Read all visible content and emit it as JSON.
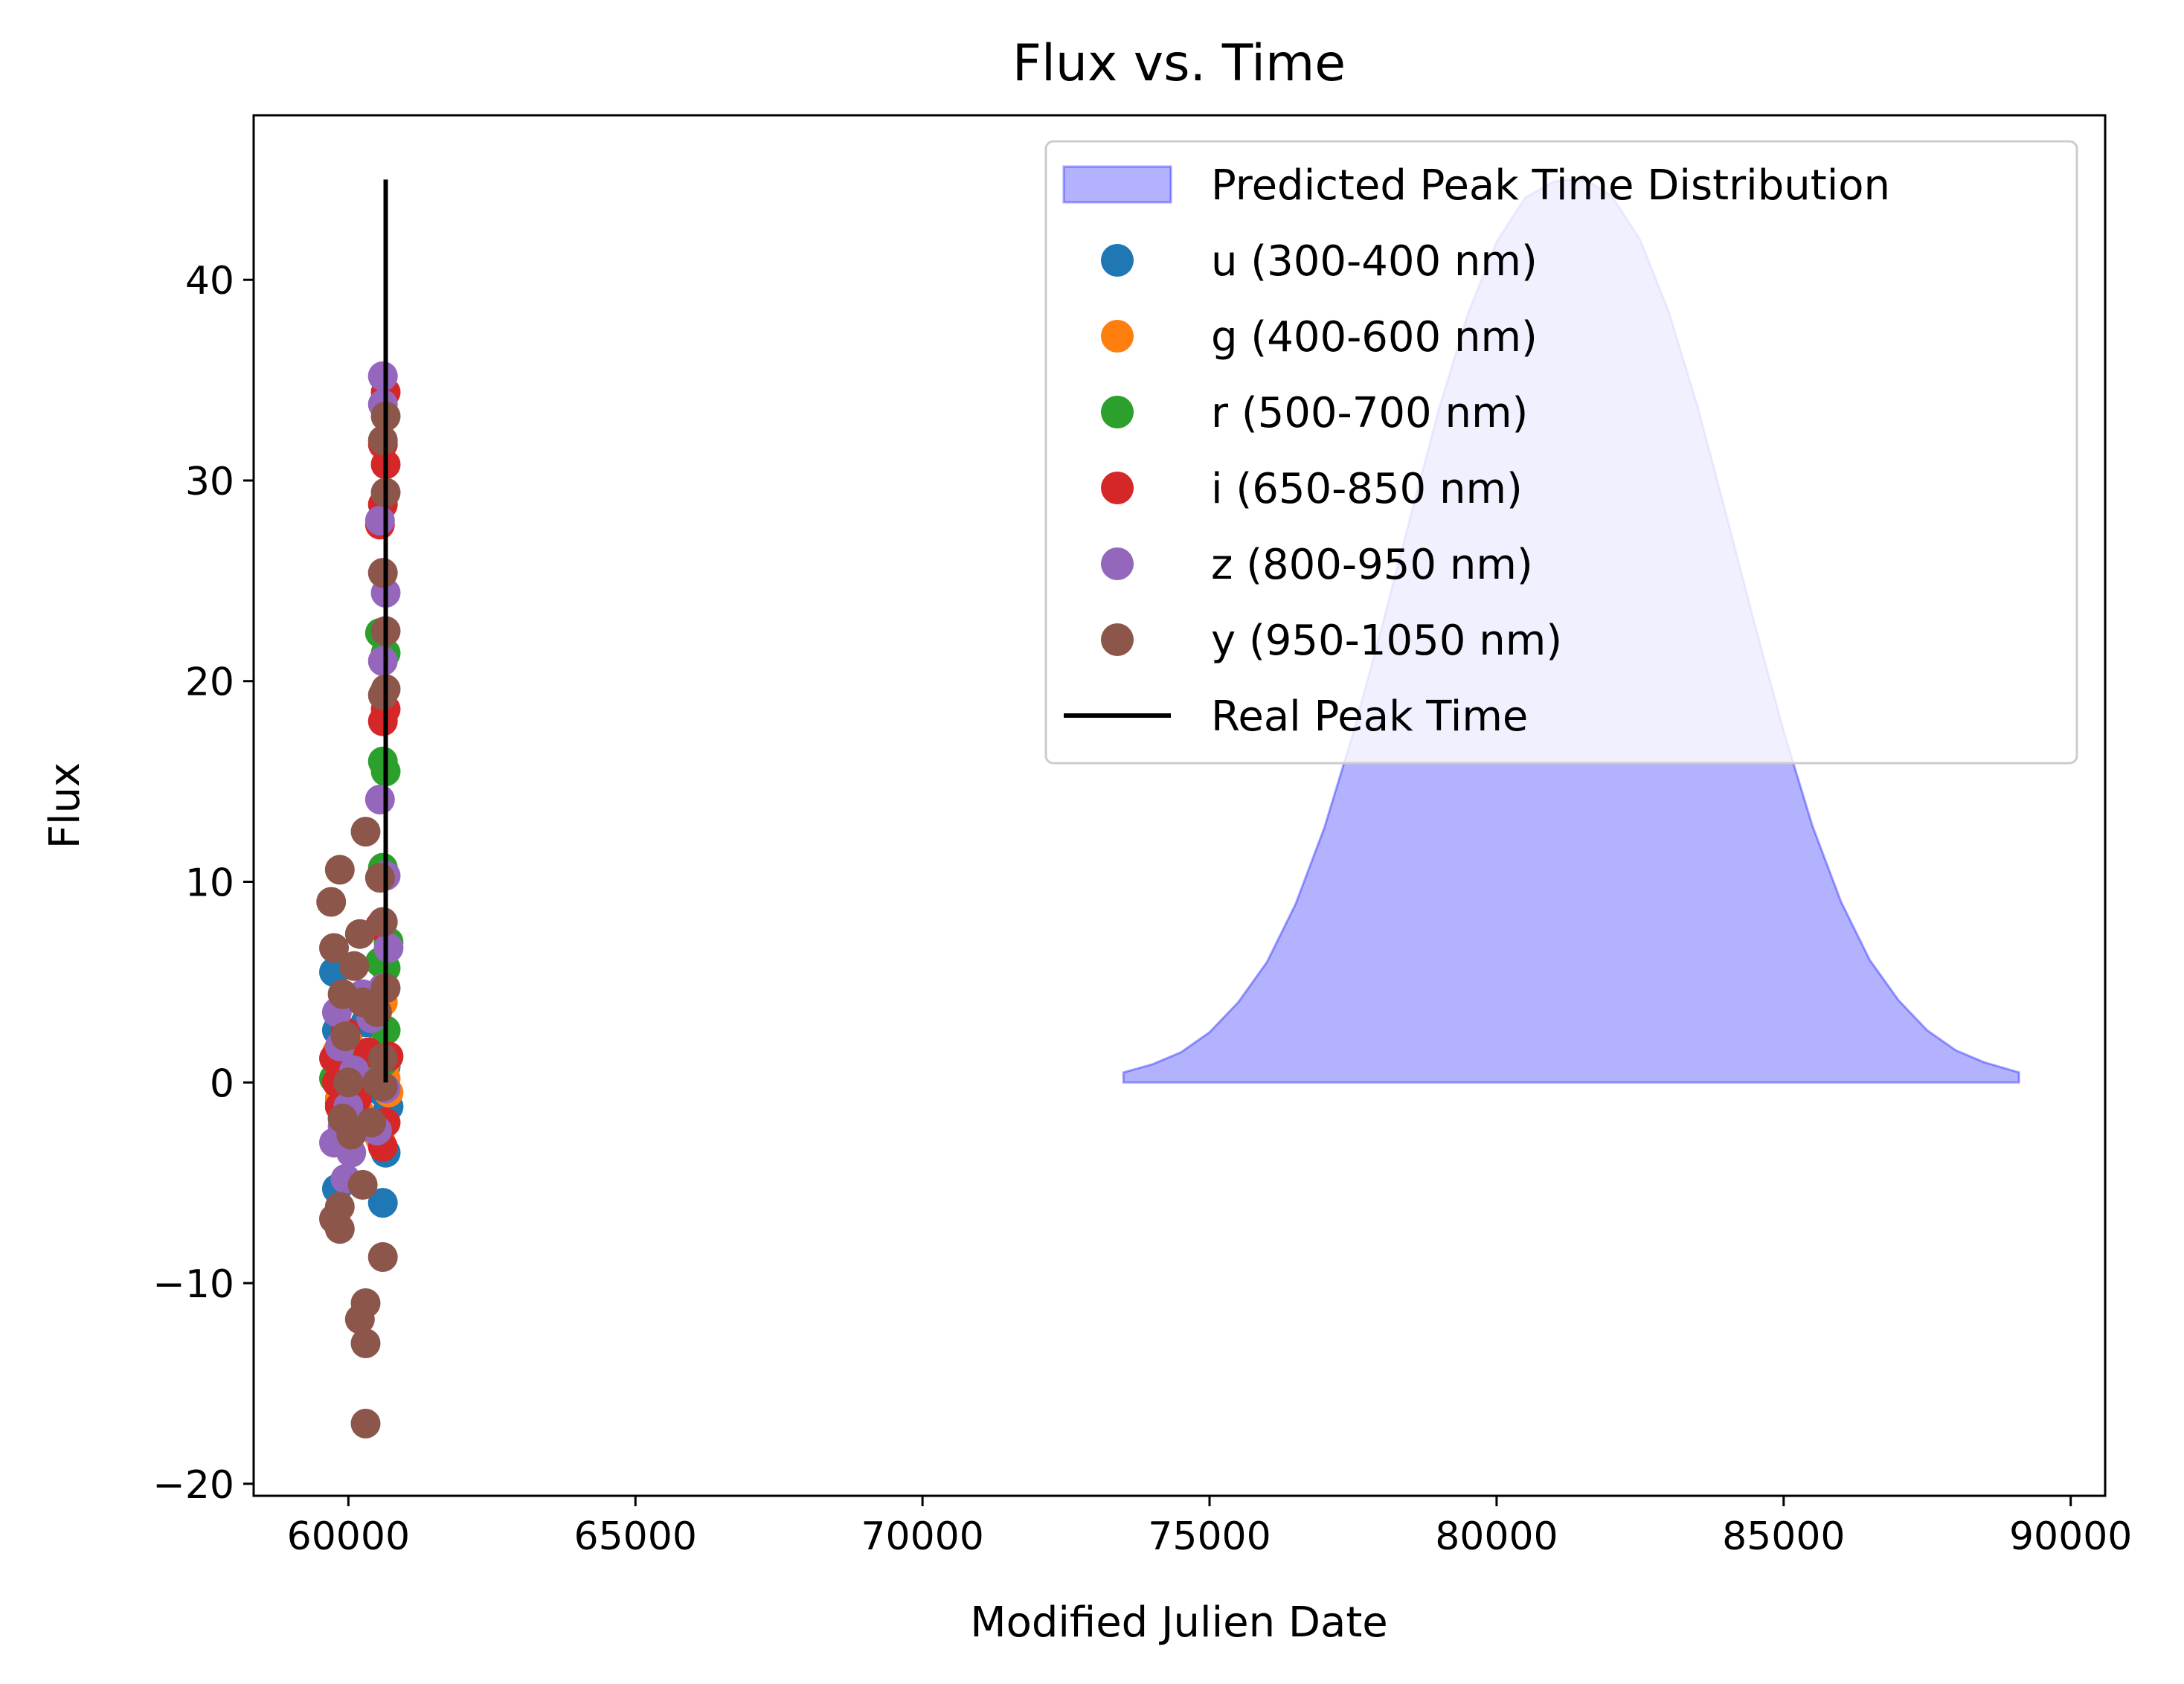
{
  "chart_data": {
    "type": "scatter",
    "title": "Flux vs. Time",
    "xlabel": "Modified Julien Date",
    "ylabel": "Flux",
    "xlim": [
      58350,
      90600
    ],
    "ylim": [
      -20.6,
      48.2
    ],
    "xticks": [
      60000,
      65000,
      70000,
      75000,
      80000,
      85000,
      90000
    ],
    "yticks": [
      -20,
      -10,
      0,
      10,
      20,
      30,
      40
    ],
    "xtick_labels": [
      "60000",
      "65000",
      "70000",
      "75000",
      "80000",
      "85000",
      "90000"
    ],
    "ytick_labels": [
      "−20",
      "−10",
      "0",
      "10",
      "20",
      "30",
      "40"
    ],
    "grid": false,
    "legend_position": "top-right",
    "series": [
      {
        "name": "u (300-400 nm)",
        "kind": "scatter",
        "color": "#1f77b4",
        "points": [
          [
            59750,
            5.5
          ],
          [
            59800,
            2.6
          ],
          [
            59850,
            -1.0
          ],
          [
            59800,
            -5.3
          ],
          [
            59900,
            1.8
          ],
          [
            60050,
            -0.6
          ],
          [
            60300,
            3.0
          ],
          [
            60400,
            1.2
          ],
          [
            60550,
            -0.4
          ],
          [
            60600,
            -6.0
          ],
          [
            60650,
            -3.5
          ],
          [
            60700,
            -1.2
          ],
          [
            60650,
            0.8
          ],
          [
            60600,
            2.5
          ],
          [
            60450,
            -2.0
          ]
        ]
      },
      {
        "name": "g (400-600 nm)",
        "kind": "scatter",
        "color": "#ff7f0e",
        "points": [
          [
            59800,
            1.5
          ],
          [
            59850,
            -0.8
          ],
          [
            59900,
            0.5
          ],
          [
            60000,
            2.0
          ],
          [
            60200,
            -1.5
          ],
          [
            60400,
            0.3
          ],
          [
            60600,
            4.0
          ],
          [
            60650,
            0.2
          ],
          [
            60700,
            -0.5
          ],
          [
            60650,
            1.0
          ],
          [
            60550,
            -2.8
          ],
          [
            60500,
            1.6
          ]
        ]
      },
      {
        "name": "r (500-700 nm)",
        "kind": "scatter",
        "color": "#2ca02c",
        "points": [
          [
            59750,
            0.2
          ],
          [
            59850,
            1.2
          ],
          [
            59900,
            -1.8
          ],
          [
            60100,
            -0.5
          ],
          [
            60300,
            0.8
          ],
          [
            60550,
            6.0
          ],
          [
            60600,
            10.7
          ],
          [
            60650,
            15.5
          ],
          [
            60600,
            16.0
          ],
          [
            60650,
            21.4
          ],
          [
            60550,
            22.4
          ],
          [
            60650,
            2.6
          ],
          [
            60700,
            7.0
          ],
          [
            60650,
            5.7
          ],
          [
            60600,
            1.0
          ]
        ]
      },
      {
        "name": "i (650-850 nm)",
        "kind": "scatter",
        "color": "#d62728",
        "points": [
          [
            59750,
            1.2
          ],
          [
            59800,
            0.0
          ],
          [
            59850,
            -1.2
          ],
          [
            59950,
            2.5
          ],
          [
            60150,
            -0.8
          ],
          [
            60350,
            1.5
          ],
          [
            60550,
            7.8
          ],
          [
            60600,
            18.0
          ],
          [
            60650,
            18.6
          ],
          [
            60550,
            27.8
          ],
          [
            60600,
            28.8
          ],
          [
            60650,
            30.8
          ],
          [
            60600,
            31.8
          ],
          [
            60650,
            34.4
          ],
          [
            60600,
            -3.2
          ],
          [
            60650,
            -2.0
          ],
          [
            60700,
            1.3
          ]
        ]
      },
      {
        "name": "z (800-950 nm)",
        "kind": "scatter",
        "color": "#9467bd",
        "points": [
          [
            59750,
            -3.0
          ],
          [
            59800,
            3.5
          ],
          [
            59850,
            1.8
          ],
          [
            59900,
            -2.2
          ],
          [
            59950,
            -4.8
          ],
          [
            60000,
            -1.2
          ],
          [
            60050,
            -3.5
          ],
          [
            60100,
            0.6
          ],
          [
            60250,
            4.4
          ],
          [
            60300,
            -2.2
          ],
          [
            60400,
            3.2
          ],
          [
            60550,
            14.1
          ],
          [
            60600,
            21.0
          ],
          [
            60650,
            24.4
          ],
          [
            60550,
            28.0
          ],
          [
            60600,
            33.8
          ],
          [
            60600,
            35.2
          ],
          [
            60650,
            10.3
          ],
          [
            60700,
            6.7
          ],
          [
            60600,
            4.7
          ],
          [
            60650,
            -0.3
          ],
          [
            60500,
            -2.4
          ]
        ]
      },
      {
        "name": "y (950-1050 nm)",
        "kind": "scatter",
        "color": "#8c564b",
        "points": [
          [
            59700,
            9.0
          ],
          [
            59750,
            6.7
          ],
          [
            59850,
            10.6
          ],
          [
            59900,
            4.4
          ],
          [
            59950,
            2.3
          ],
          [
            60000,
            0.0
          ],
          [
            59900,
            -1.8
          ],
          [
            59850,
            -6.2
          ],
          [
            59750,
            -6.8
          ],
          [
            59850,
            -7.3
          ],
          [
            60050,
            -2.6
          ],
          [
            60100,
            5.8
          ],
          [
            60200,
            7.4
          ],
          [
            60250,
            4.0
          ],
          [
            60300,
            12.5
          ],
          [
            60250,
            -5.1
          ],
          [
            60200,
            -11.8
          ],
          [
            60300,
            -11.0
          ],
          [
            60300,
            -13.0
          ],
          [
            60300,
            -17.0
          ],
          [
            60400,
            -2.0
          ],
          [
            60500,
            0.0
          ],
          [
            60600,
            -8.7
          ],
          [
            60600,
            1.2
          ],
          [
            60650,
            4.7
          ],
          [
            60600,
            8.0
          ],
          [
            60550,
            10.2
          ],
          [
            60600,
            19.3
          ],
          [
            60650,
            19.6
          ],
          [
            60650,
            22.5
          ],
          [
            60600,
            25.4
          ],
          [
            60650,
            29.4
          ],
          [
            60600,
            32.0
          ],
          [
            60650,
            33.2
          ],
          [
            60600,
            -0.2
          ],
          [
            60500,
            3.5
          ]
        ]
      },
      {
        "name": "Real Peak Time",
        "kind": "line",
        "color": "#000000",
        "x": [
          60650,
          60650
        ],
        "y": [
          0,
          45
        ]
      },
      {
        "name": "Predicted Peak Time Distribution",
        "kind": "area",
        "color": "#0000ff",
        "fill_opacity": 0.3,
        "baseline": 0,
        "curve": {
          "x": [
            73500,
            74000,
            74500,
            75000,
            75500,
            76000,
            76500,
            77000,
            77500,
            78000,
            78500,
            79000,
            79500,
            80000,
            80500,
            81000,
            81300,
            81600,
            82000,
            82500,
            83000,
            83500,
            84000,
            84500,
            85000,
            85500,
            86000,
            86500,
            87000,
            87500,
            88000,
            88500,
            89100
          ],
          "y": [
            0.5,
            0.9,
            1.5,
            2.5,
            4.0,
            6.0,
            8.9,
            12.7,
            17.4,
            22.7,
            28.2,
            33.6,
            38.3,
            41.9,
            44.1,
            44.9,
            45.0,
            44.9,
            44.2,
            42.0,
            38.4,
            33.7,
            28.3,
            22.8,
            17.5,
            12.8,
            9.0,
            6.1,
            4.1,
            2.6,
            1.6,
            1.0,
            0.5
          ]
        }
      }
    ]
  }
}
